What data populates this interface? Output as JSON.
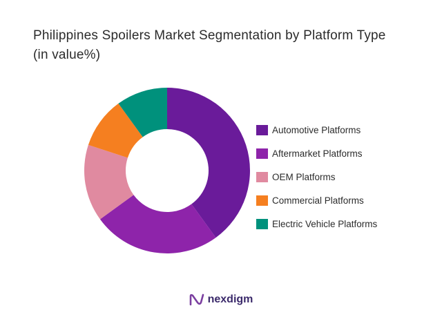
{
  "chart_data": {
    "type": "pie",
    "title": "Philippines Spoilers Market Segmentation by Platform Type",
    "subtitle": "(in value%)",
    "categories": [
      "Automotive Platforms",
      "Aftermarket Platforms",
      "OEM Platforms",
      "Commercial Platforms",
      "Electric Vehicle Platforms"
    ],
    "values": [
      40,
      25,
      15,
      10,
      10
    ],
    "colors": [
      "#6a1b9a",
      "#8e24aa",
      "#e08aa0",
      "#f57f20",
      "#00917c"
    ],
    "legend_position": "right",
    "donut": true
  },
  "brand": {
    "name": "nexdigm",
    "icon": "nexdigm-logo-icon"
  }
}
